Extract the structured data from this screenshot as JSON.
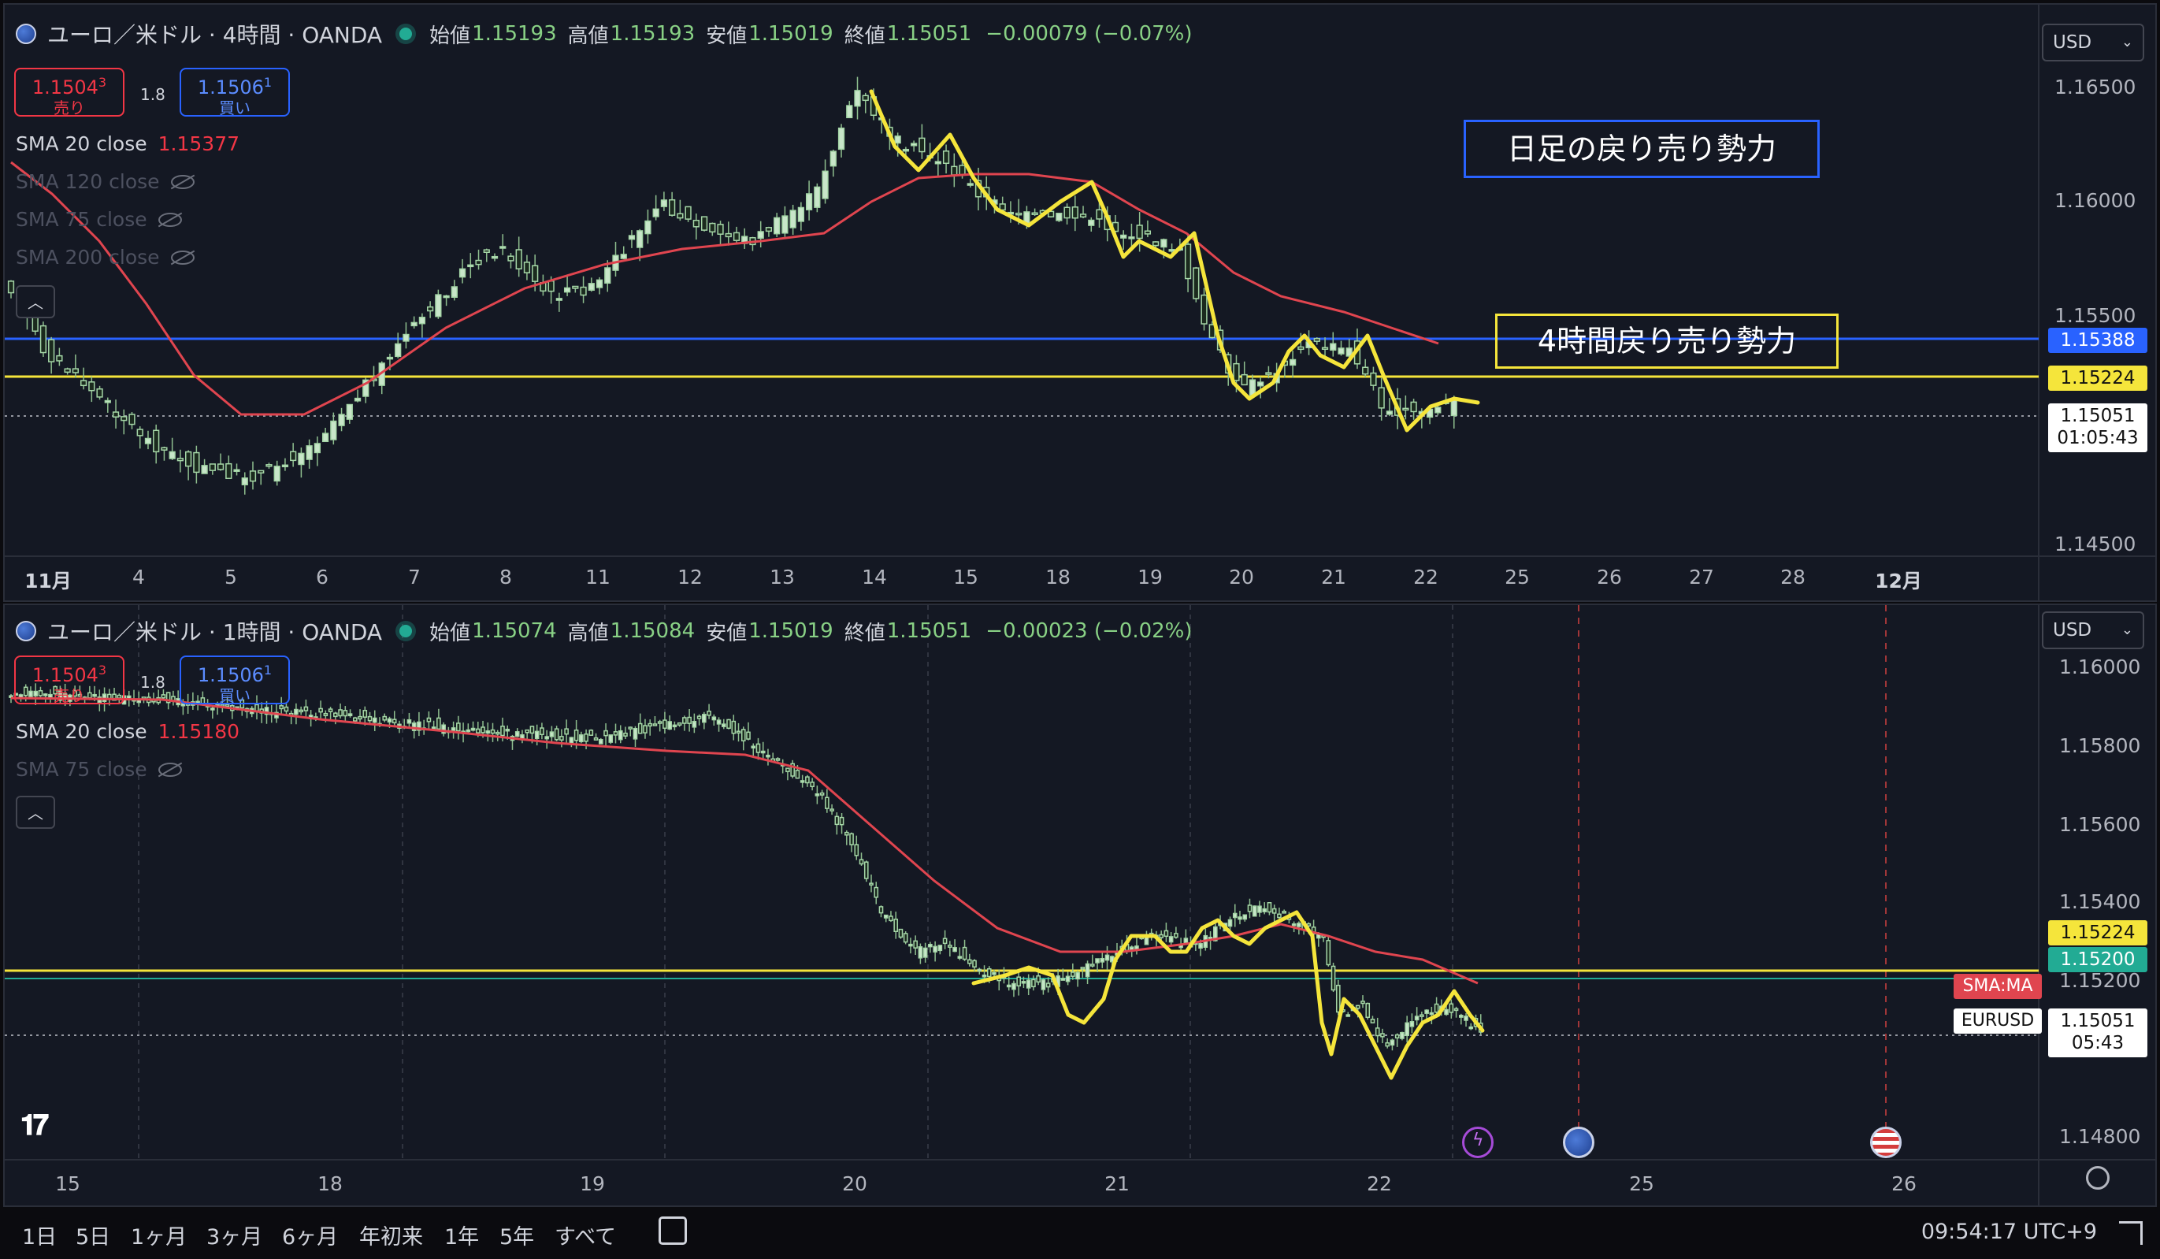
{
  "top_pane": {
    "symbol": "ユーロ／米ドル · 4時間 · OANDA",
    "ohlc": {
      "open_label": "始値",
      "open": "1.15193",
      "high_label": "高値",
      "high": "1.15193",
      "low_label": "安値",
      "low": "1.15019",
      "close_label": "終値",
      "close": "1.15051",
      "change": "−0.00079 (−0.07%)"
    },
    "sell": {
      "price_main": "1.1504",
      "price_sup": "3",
      "label": "売り"
    },
    "spread": "1.8",
    "buy": {
      "price_main": "1.1506",
      "price_sup": "1",
      "label": "買い"
    },
    "indicators": [
      {
        "name": "SMA 20 close",
        "value": "1.15377",
        "hidden": false
      },
      {
        "name": "SMA 120 close",
        "value": "",
        "hidden": true
      },
      {
        "name": "SMA 75 close",
        "value": "",
        "hidden": true
      },
      {
        "name": "SMA 200 close",
        "value": "",
        "hidden": true
      }
    ],
    "currency": "USD",
    "price_axis": [
      "1.16500",
      "1.16000",
      "1.15500",
      "1.14500"
    ],
    "tags": {
      "blue_line": "1.15388",
      "yellow_line": "1.15224",
      "last_price": "1.15051",
      "countdown": "01:05:43"
    },
    "time_axis": [
      {
        "label": "11月",
        "bold": true
      },
      {
        "label": "4"
      },
      {
        "label": "5"
      },
      {
        "label": "6"
      },
      {
        "label": "7"
      },
      {
        "label": "8"
      },
      {
        "label": "11"
      },
      {
        "label": "12"
      },
      {
        "label": "13"
      },
      {
        "label": "14"
      },
      {
        "label": "15"
      },
      {
        "label": "18"
      },
      {
        "label": "19"
      },
      {
        "label": "20"
      },
      {
        "label": "21"
      },
      {
        "label": "22"
      },
      {
        "label": "25"
      },
      {
        "label": "26"
      },
      {
        "label": "27"
      },
      {
        "label": "28"
      },
      {
        "label": "12月",
        "bold": true
      }
    ],
    "annotations": {
      "daily": "日足の戻り売り勢力",
      "h4": "4時間戻り売り勢力"
    }
  },
  "bottom_pane": {
    "symbol": "ユーロ／米ドル · 1時間 · OANDA",
    "ohlc": {
      "open_label": "始値",
      "open": "1.15074",
      "high_label": "高値",
      "high": "1.15084",
      "low_label": "安値",
      "low": "1.15019",
      "close_label": "終値",
      "close": "1.15051",
      "change": "−0.00023 (−0.02%)"
    },
    "sell": {
      "price_main": "1.1504",
      "price_sup": "3",
      "label": "売り"
    },
    "spread": "1.8",
    "buy": {
      "price_main": "1.1506",
      "price_sup": "1",
      "label": "買い"
    },
    "indicators": [
      {
        "name": "SMA 20 close",
        "value": "1.15180",
        "hidden": false
      },
      {
        "name": "SMA 75 close",
        "value": "",
        "hidden": true
      }
    ],
    "currency": "USD",
    "price_axis": [
      "1.16000",
      "1.15800",
      "1.15600",
      "1.15400",
      "1.15200",
      "1.14800"
    ],
    "tags": {
      "yellow_line": "1.15224",
      "sma_value": "1.15200",
      "sma_label": "SMA:MA",
      "symbol_label": "EURUSD",
      "last_price": "1.15051",
      "countdown": "05:43"
    },
    "time_axis": [
      "15",
      "18",
      "19",
      "20",
      "21",
      "22",
      "25",
      "26"
    ]
  },
  "bottom_bar": {
    "ranges": [
      "1日",
      "5日",
      "1ヶ月",
      "3ヶ月",
      "6ヶ月",
      "年初来",
      "1年",
      "5年",
      "すべて"
    ],
    "clock": "09:54:17 UTC+9"
  },
  "colors": {
    "up": "#a5d6a7",
    "down": "#a5d6a7",
    "sma": "#e0454f",
    "blue_line": "#2962ff",
    "yellow_line": "#f5e53b",
    "teal_line": "#22ab94",
    "bg": "#141823"
  }
}
